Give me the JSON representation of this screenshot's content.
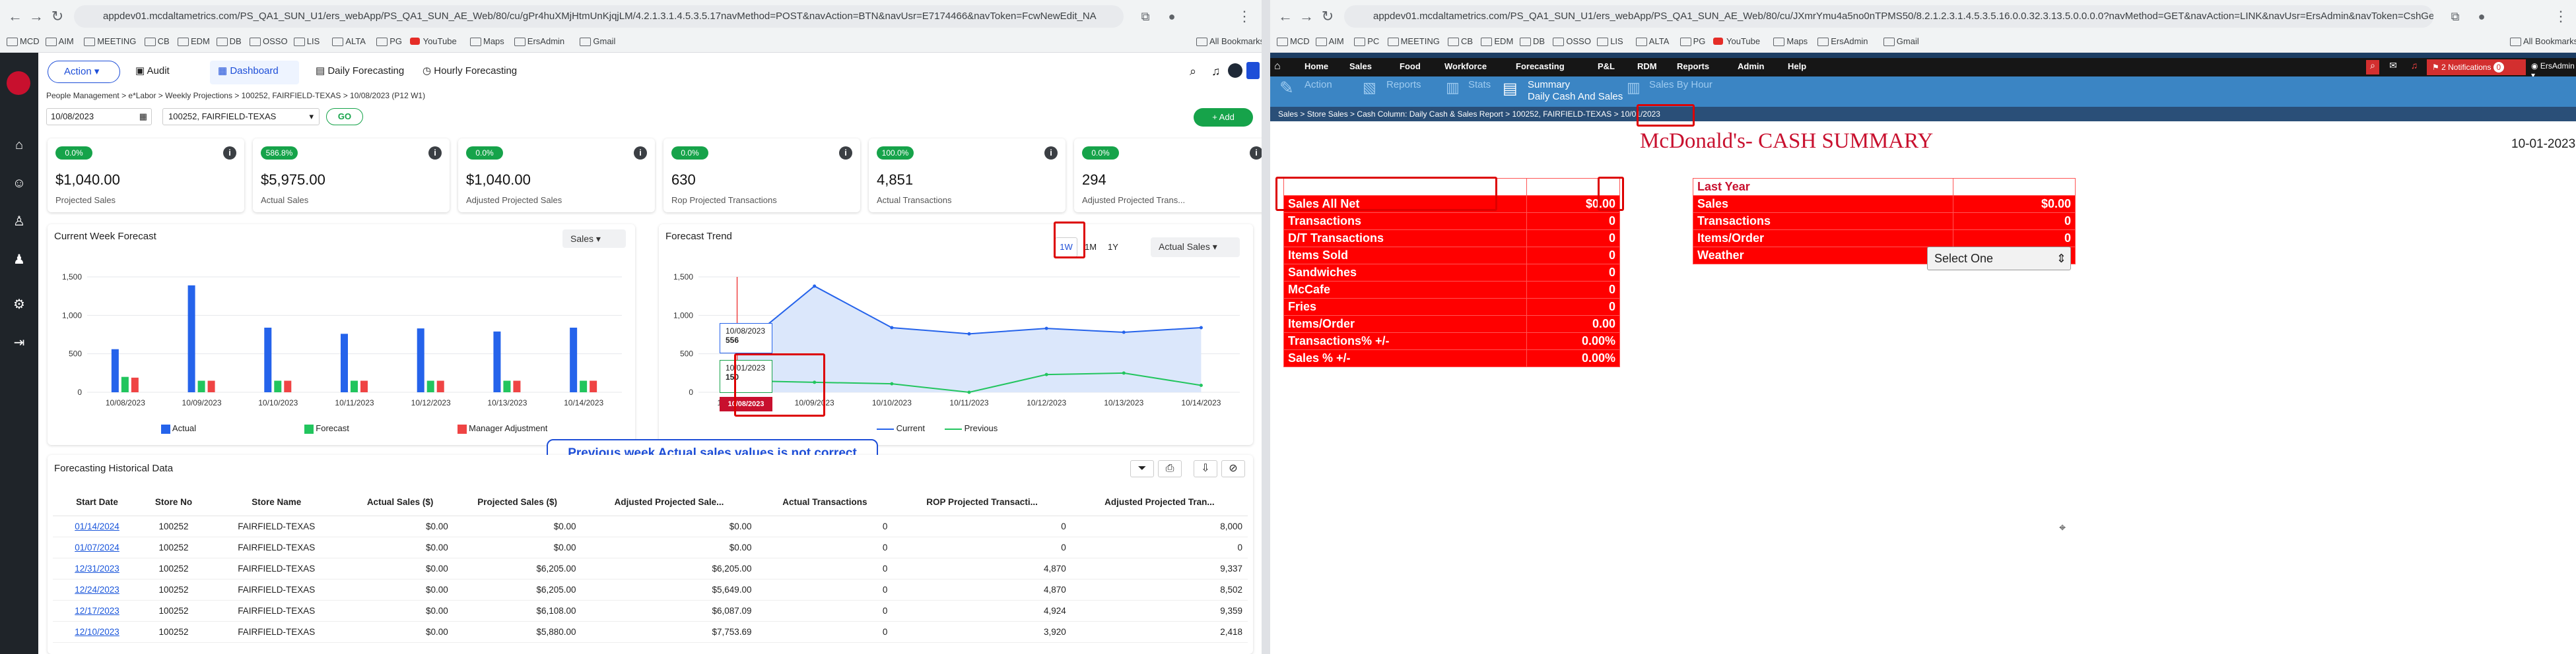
{
  "left_browser": {
    "url": "appdev01.mcdaltametrics.com/PS_QA1_SUN_U1/ers_webApp/PS_QA1_SUN_AE_Web/80/cu/gPr4huXMjHtmUnKjqjLM/4.2.1.3.1.4.5.3.5.17navMethod=POST&navAction=BTN&navUsr=E7174466&navToken=FcwNewEdit_NA",
    "all_bookmarks": "All Bookmarks",
    "bookmarks": [
      "MCD",
      "AIM",
      "MEETING",
      "CB",
      "EDM",
      "DB",
      "OSSO",
      "LIS",
      "ALTA",
      "PG",
      "YouTube",
      "Maps",
      "ErsAdmin",
      "Gmail"
    ]
  },
  "right_browser": {
    "url": "appdev01.mcdaltametrics.com/PS_QA1_SUN_U1/ers_webApp/PS_QA1_SUN_AE_Web/80/cu/JXmrYmu4a5no0nTPMS50/8.2.1.2.3.1.4.5.3.5.16.0.0.32.3.13.5.0.0.0.0?navMethod=GET&navAction=LINK&navUsr=ErsAdmin&navToken=CshGeneral_openObj...",
    "all_bookmarks": "All Bookmarks",
    "bookmarks": [
      "MCD",
      "AIM",
      "PC",
      "MEETING",
      "CB",
      "EDM",
      "DB",
      "OSSO",
      "LIS",
      "ALTA",
      "PG",
      "YouTube",
      "Maps",
      "ErsAdmin",
      "Gmail"
    ]
  },
  "left_app": {
    "action_label": "Action",
    "audit_label": "Audit",
    "tabs": [
      "Dashboard",
      "Daily Forecasting",
      "Hourly Forecasting"
    ],
    "breadcrumb": "People Management > e*Labor > Weekly Projections > 100252, FAIRFIELD-TEXAS > 10/08/2023 (P12 W1)",
    "date_value": "10/08/2023",
    "store_value": "100252, FAIRFIELD-TEXAS",
    "go_label": "GO",
    "add_label": "+ Add",
    "kpis": [
      {
        "badge": "0.0%",
        "value": "$1,040.00",
        "label": "Projected Sales"
      },
      {
        "badge": "586.8%",
        "value": "$5,975.00",
        "label": "Actual Sales"
      },
      {
        "badge": "0.0%",
        "value": "$1,040.00",
        "label": "Adjusted Projected Sales"
      },
      {
        "badge": "0.0%",
        "value": "630",
        "label": "Rop Projected Transactions"
      },
      {
        "badge": "100.0%",
        "value": "4,851",
        "label": "Actual Transactions"
      },
      {
        "badge": "0.0%",
        "value": "294",
        "label": "Adjusted Projected Trans..."
      }
    ],
    "week_panel": {
      "title": "Current Week Forecast",
      "select": "Sales",
      "legend": [
        "Actual",
        "Forecast",
        "Manager Adjustment"
      ]
    },
    "trend_panel": {
      "title": "Forecast Trend",
      "ranges": [
        "1W",
        "1M",
        "1Y"
      ],
      "select": "Actual Sales",
      "legend": [
        "Current",
        "Previous"
      ],
      "tooltip1": {
        "date": "10/08/2023",
        "value": "556"
      },
      "tooltip2": {
        "date": "10/01/2023",
        "value": "150"
      },
      "axis_flag": "10/08/2023"
    },
    "annotation": "Previous week Actual sales values is not correct",
    "history": {
      "title": "Forecasting Historical Data",
      "columns": [
        "Start Date",
        "Store No",
        "Store Name",
        "Actual Sales ($)",
        "Projected Sales ($)",
        "Adjusted Projected Sale...",
        "Actual Transactions",
        "ROP Projected Transacti...",
        "Adjusted Projected Tran..."
      ],
      "rows": [
        [
          "01/14/2024",
          "100252",
          "FAIRFIELD-TEXAS",
          "$0.00",
          "$0.00",
          "$0.00",
          "0",
          "0",
          "8,000"
        ],
        [
          "01/07/2024",
          "100252",
          "FAIRFIELD-TEXAS",
          "$0.00",
          "$0.00",
          "$0.00",
          "0",
          "0",
          "0"
        ],
        [
          "12/31/2023",
          "100252",
          "FAIRFIELD-TEXAS",
          "$0.00",
          "$6,205.00",
          "$6,205.00",
          "0",
          "4,870",
          "9,337"
        ],
        [
          "12/24/2023",
          "100252",
          "FAIRFIELD-TEXAS",
          "$0.00",
          "$6,205.00",
          "$5,649.00",
          "0",
          "4,870",
          "8,502"
        ],
        [
          "12/17/2023",
          "100252",
          "FAIRFIELD-TEXAS",
          "$0.00",
          "$6,108.00",
          "$6,087.09",
          "0",
          "4,924",
          "9,359"
        ],
        [
          "12/10/2023",
          "100252",
          "FAIRFIELD-TEXAS",
          "$0.00",
          "$5,880.00",
          "$7,753.69",
          "0",
          "3,920",
          "2,418"
        ]
      ]
    }
  },
  "chart_data": [
    {
      "type": "bar",
      "title": "Current Week Forecast",
      "categories": [
        "10/08/2023",
        "10/09/2023",
        "10/10/2023",
        "10/11/2023",
        "10/12/2023",
        "10/13/2023",
        "10/14/2023"
      ],
      "ylim": [
        0,
        1500
      ],
      "yticks": [
        "0",
        "500",
        "1,000",
        "1,500"
      ],
      "series": [
        {
          "name": "Actual",
          "color": "#2563eb",
          "values": [
            560,
            1390,
            840,
            760,
            830,
            790,
            840
          ]
        },
        {
          "name": "Forecast",
          "color": "#22c55e",
          "values": [
            200,
            150,
            150,
            150,
            150,
            150,
            150
          ]
        },
        {
          "name": "Manager Adjustment",
          "color": "#ef4444",
          "values": [
            190,
            150,
            150,
            150,
            150,
            150,
            150
          ]
        }
      ]
    },
    {
      "type": "line",
      "title": "Forecast Trend",
      "categories": [
        "10/08/2023",
        "10/09/2023",
        "10/10/2023",
        "10/11/2023",
        "10/12/2023",
        "10/13/2023",
        "10/14/2023"
      ],
      "ylim": [
        0,
        1500
      ],
      "yticks": [
        "0",
        "500",
        "1,000",
        "1,500"
      ],
      "series": [
        {
          "name": "Current",
          "color": "#2563eb",
          "values": [
            556,
            1380,
            840,
            760,
            830,
            780,
            840
          ]
        },
        {
          "name": "Previous",
          "color": "#22c55e",
          "values": [
            150,
            130,
            110,
            0,
            230,
            250,
            90
          ]
        }
      ]
    }
  ],
  "right_app": {
    "menus": [
      "Home",
      "Sales",
      "Food",
      "Workforce",
      "Forecasting",
      "P&L",
      "RDM",
      "Reports",
      "Admin",
      "Help"
    ],
    "notifications": "2 Notifications",
    "notif_count": "0",
    "user": "ErsAdmin",
    "subnav": [
      "Action",
      "Reports",
      "Stats",
      "Summary",
      "Daily Cash And Sales",
      "Sales By Hour"
    ],
    "breadcrumb": "Sales > Store Sales > Cash Column: Daily Cash & Sales Report > 100252, FAIRFIELD-TEXAS > ",
    "bread_date": "10/01/2023",
    "title": "McDonald's- CASH SUMMARY",
    "report_date": "10-01-2023",
    "left_table": [
      [
        "",
        ""
      ],
      [
        "Sales All Net",
        "$0.00"
      ],
      [
        "Transactions",
        "0"
      ],
      [
        "D/T Transactions",
        "0"
      ],
      [
        "Items Sold",
        "0"
      ],
      [
        "Sandwiches",
        "0"
      ],
      [
        "McCafe",
        "0"
      ],
      [
        "Fries",
        "0"
      ],
      [
        "Items/Order",
        "0.00"
      ],
      [
        "Transactions% +/-",
        "0.00%"
      ],
      [
        "Sales % +/-",
        "0.00%"
      ]
    ],
    "right_table": [
      [
        "Last Year",
        ""
      ],
      [
        "Sales",
        "$0.00"
      ],
      [
        "Transactions",
        "0"
      ],
      [
        "Items/Order",
        "0"
      ],
      [
        "Weather",
        ""
      ]
    ],
    "weather_select": "Select One"
  }
}
